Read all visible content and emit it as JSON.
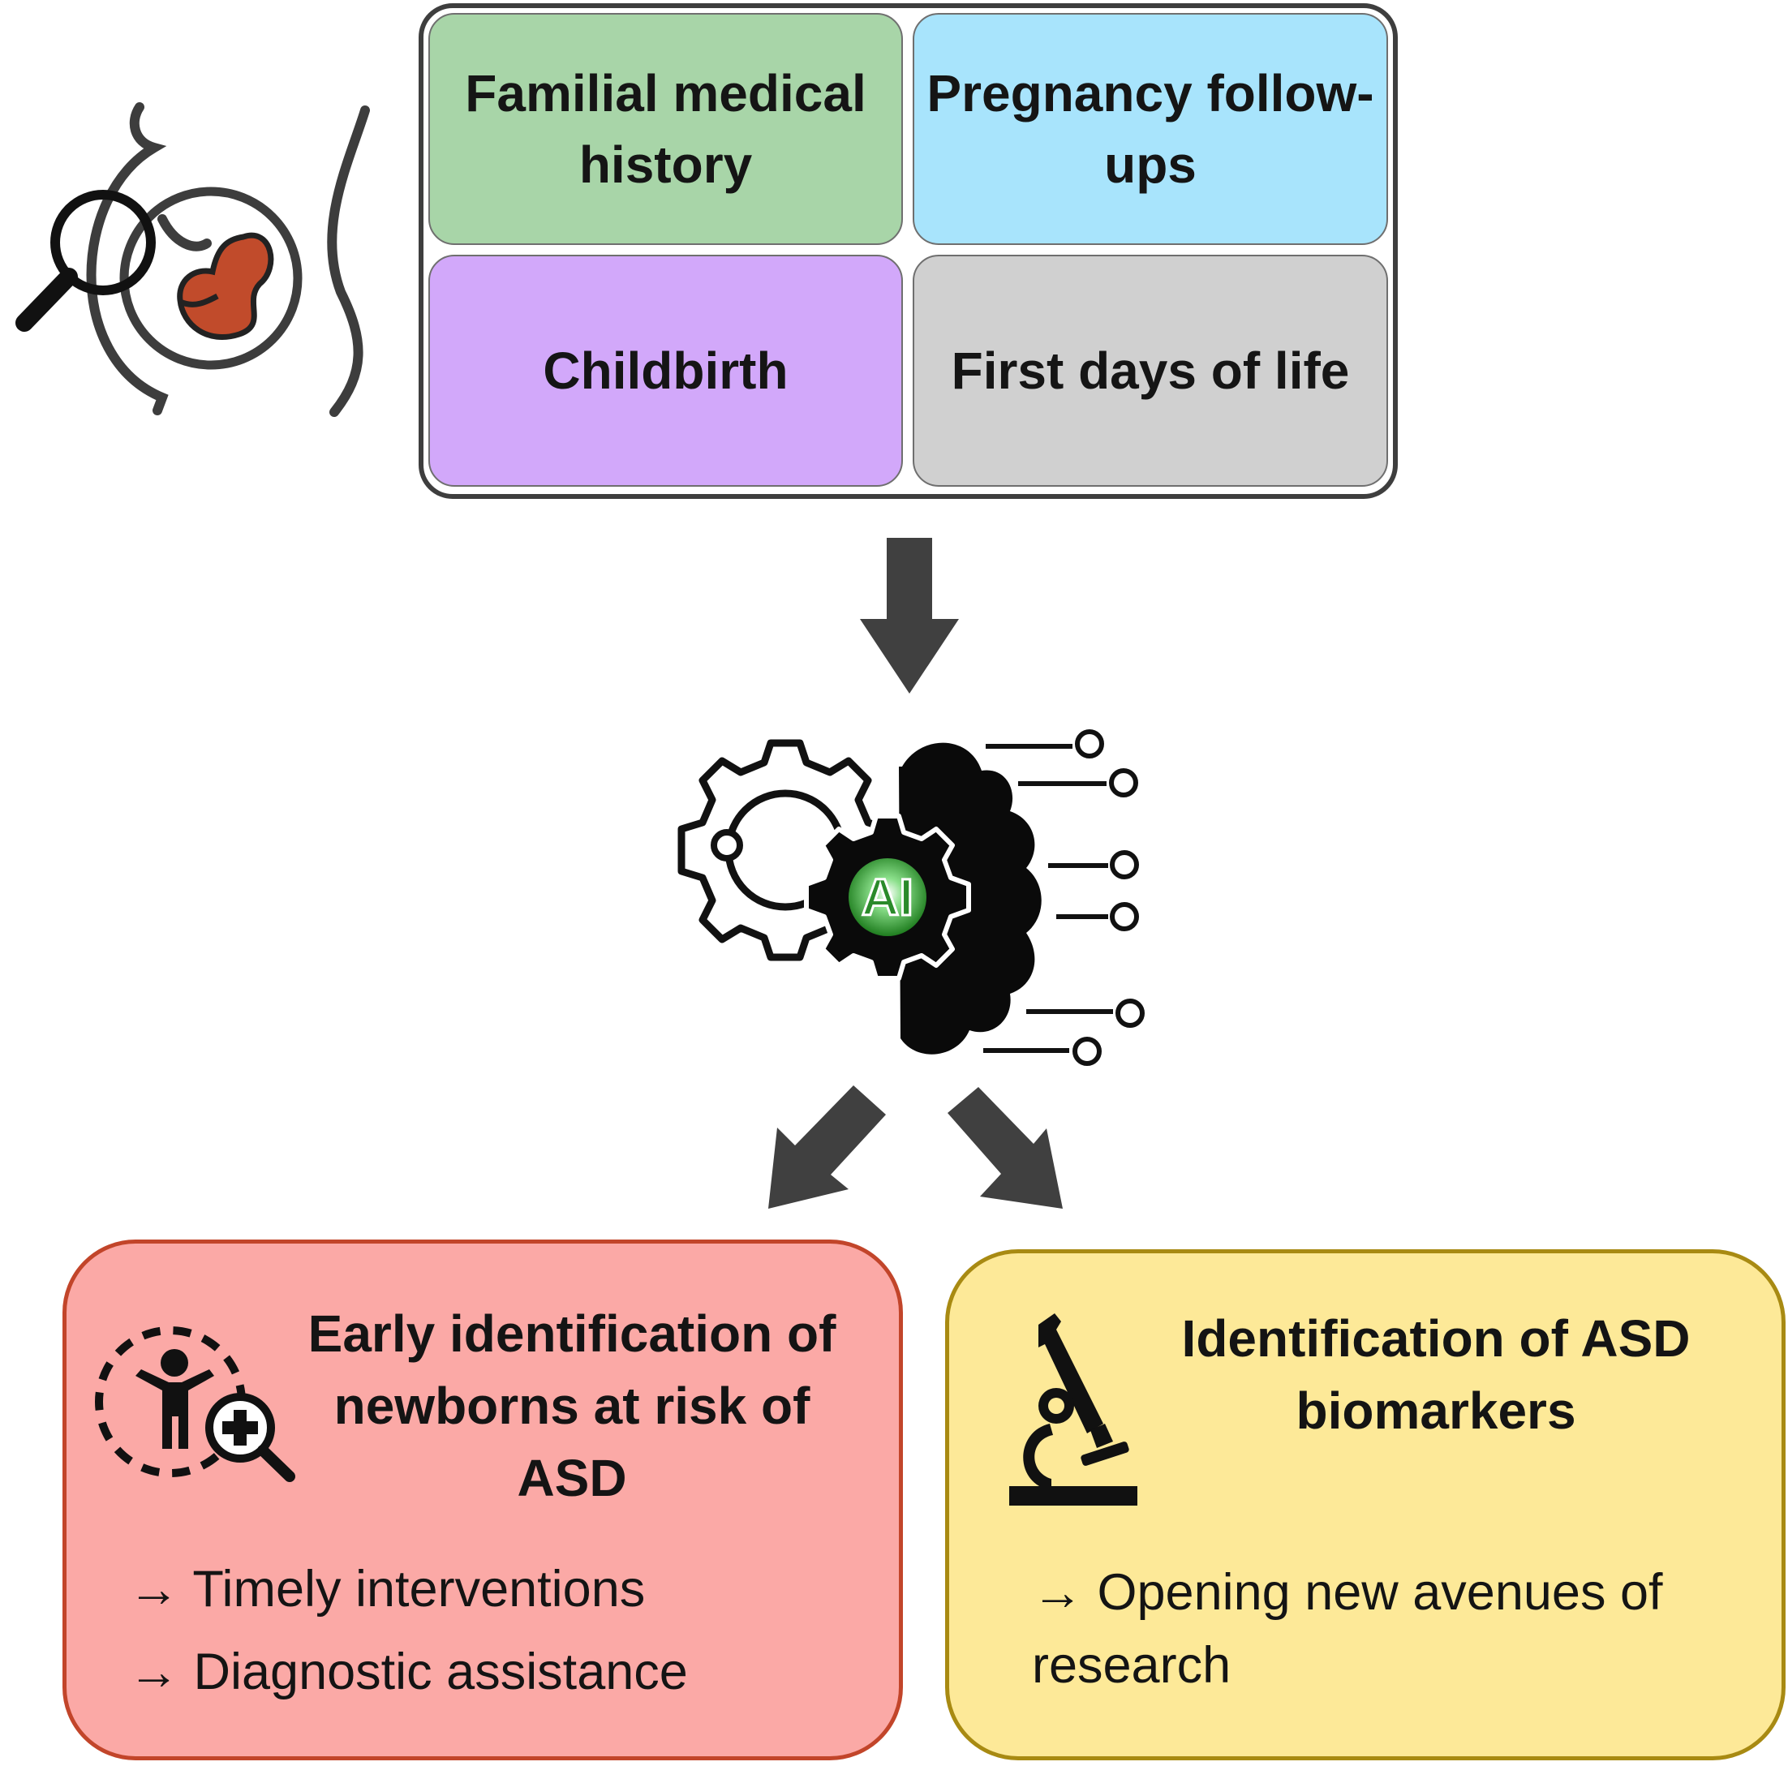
{
  "sources": {
    "familial": {
      "label": "Familial medical history",
      "color": "#a8d5a8"
    },
    "pregnancy": {
      "label": "Pregnancy follow-ups",
      "color": "#a8e4fc"
    },
    "childbirth": {
      "label": "Childbirth",
      "color": "#d2a8fa"
    },
    "first_days": {
      "label": "First days of life",
      "color": "#d0d0d0"
    }
  },
  "ai": {
    "badge": "AI"
  },
  "outcomes": {
    "early": {
      "title": "Early identification of newborns at risk of ASD",
      "bullets": [
        "→ Timely interventions",
        "→ Diagnostic assistance"
      ],
      "color": "#fba9a6"
    },
    "biomarkers": {
      "title": "Identification of ASD biomarkers",
      "bullets": [
        "→ Opening new avenues of research"
      ],
      "color": "#fde998"
    }
  },
  "icons": {
    "pregnancy": "pregnancy-scan-icon",
    "ai": "ai-brain-gear-icon",
    "child": "child-search-icon",
    "microscope": "microscope-icon"
  },
  "colors": {
    "arrow": "#404040",
    "fetus": "#c14b2b",
    "ai_glow": "#2f9e2f"
  }
}
